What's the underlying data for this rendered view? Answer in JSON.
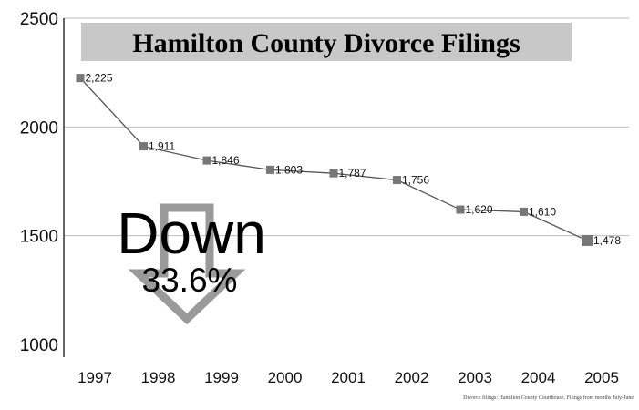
{
  "chart_data": {
    "type": "line",
    "title": "Hamilton County Divorce Filings",
    "categories": [
      "1997",
      "1998",
      "1999",
      "2000",
      "2001",
      "2002",
      "2003",
      "2004",
      "2005"
    ],
    "values": [
      2225,
      1911,
      1846,
      1803,
      1787,
      1756,
      1620,
      1610,
      1478
    ],
    "data_labels": [
      "2,225",
      "1,911",
      "1,846",
      "1,803",
      "1,787",
      "1,756",
      "1,620",
      "1,610",
      "1,478"
    ],
    "y_ticks": [
      "2500",
      "2000",
      "1500",
      "1000"
    ],
    "ylim": [
      1000,
      2500
    ],
    "grid": "horizontal",
    "annotation": {
      "headline": "Down",
      "value": "33.6%"
    },
    "source": "Divorce filings: Hamilton County Courthouse. Filings from months July-June",
    "colors": {
      "line": "#555555",
      "marker": "#777777",
      "grid": "#bdbdbd",
      "title_bg": "#c8c8c8",
      "arrow": "#9a9a9a"
    }
  }
}
